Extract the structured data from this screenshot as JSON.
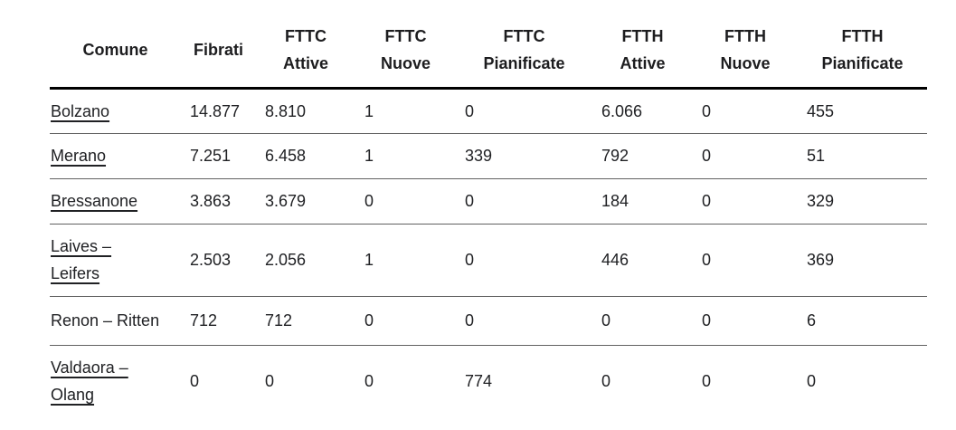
{
  "colors": {
    "text": "#202124",
    "header_rule": "#000000",
    "row_rule": "#616161",
    "background": "#ffffff"
  },
  "chart_data": {
    "type": "table",
    "columns": [
      "Comune",
      "Fibrati",
      "FTTC\nAttive",
      "FTTC\nNuove",
      "FTTC\nPianificate",
      "FTTH\nAttive",
      "FTTH\nNuove",
      "FTTH\nPianificate"
    ],
    "rows": [
      {
        "comune": "Bolzano",
        "is_link": true,
        "values": [
          "14.877",
          "8.810",
          "1",
          "0",
          "6.066",
          "0",
          "455"
        ]
      },
      {
        "comune": "Merano",
        "is_link": true,
        "values": [
          "7.251",
          "6.458",
          "1",
          "339",
          "792",
          "0",
          "51"
        ]
      },
      {
        "comune": "Bressanone",
        "is_link": true,
        "values": [
          "3.863",
          "3.679",
          "0",
          "0",
          "184",
          "0",
          "329"
        ]
      },
      {
        "comune": "Laives –\nLeifers",
        "is_link": true,
        "values": [
          "2.503",
          "2.056",
          "1",
          "0",
          "446",
          "0",
          "369"
        ]
      },
      {
        "comune": "Renon – Ritten",
        "is_link": false,
        "values": [
          "712",
          "712",
          "0",
          "0",
          "0",
          "0",
          "6"
        ]
      },
      {
        "comune": "Valdaora –\nOlang",
        "is_link": true,
        "values": [
          "0",
          "0",
          "0",
          "774",
          "0",
          "0",
          "0"
        ]
      }
    ]
  }
}
